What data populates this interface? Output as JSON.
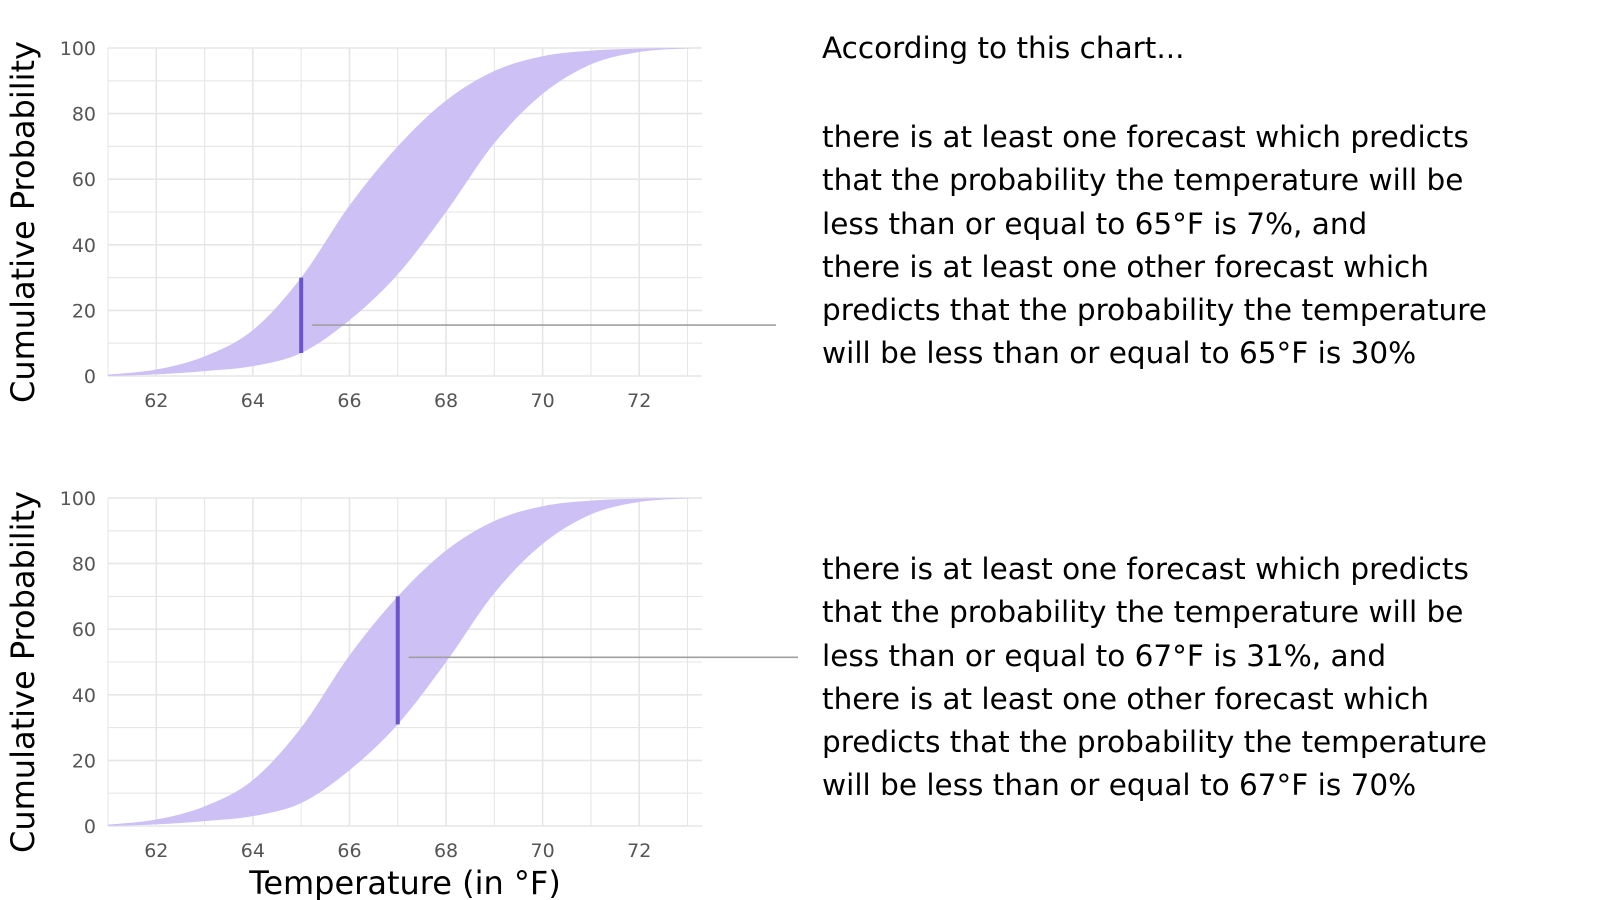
{
  "chart_data": [
    {
      "type": "area",
      "xlabel": "",
      "ylabel": "Cumulative Probability",
      "xlim": [
        61,
        73.3
      ],
      "ylim": [
        0,
        100
      ],
      "x_ticks": [
        "62",
        "64",
        "66",
        "68",
        "70",
        "72"
      ],
      "y_ticks": [
        "0",
        "20",
        "40",
        "60",
        "80",
        "100"
      ],
      "grid": true,
      "legend": "none",
      "colors": {
        "band": "#c9bdf3",
        "marker": "#6a55cc",
        "connector": "#a0a0a0",
        "grid": "#e6e6e6"
      },
      "band": {
        "description_x": [
          61,
          62,
          63,
          64,
          65,
          66,
          67,
          68,
          69,
          70,
          71,
          72,
          73,
          73.3
        ],
        "upper": [
          0.4,
          2,
          6,
          14,
          30,
          52,
          70,
          84,
          93,
          97.5,
          99.2,
          99.8,
          100,
          100
        ],
        "lower": [
          0,
          0.5,
          1.5,
          3,
          7,
          17,
          31,
          50,
          71,
          86,
          95,
          98.8,
          99.9,
          100
        ]
      },
      "highlight": {
        "x": 65,
        "low": 7,
        "high": 30
      }
    },
    {
      "type": "area",
      "xlabel": "Temperature (in °F)",
      "ylabel": "Cumulative Probability",
      "xlim": [
        61,
        73.3
      ],
      "ylim": [
        0,
        100
      ],
      "x_ticks": [
        "62",
        "64",
        "66",
        "68",
        "70",
        "72"
      ],
      "y_ticks": [
        "0",
        "20",
        "40",
        "60",
        "80",
        "100"
      ],
      "grid": true,
      "legend": "none",
      "colors": {
        "band": "#c9bdf3",
        "marker": "#6a55cc",
        "connector": "#a0a0a0",
        "grid": "#e6e6e6"
      },
      "band": {
        "description_x": [
          61,
          62,
          63,
          64,
          65,
          66,
          67,
          68,
          69,
          70,
          71,
          72,
          73,
          73.3
        ],
        "upper": [
          0.4,
          2,
          6,
          14,
          30,
          52,
          70,
          84,
          93,
          97.5,
          99.2,
          99.8,
          100,
          100
        ],
        "lower": [
          0,
          0.5,
          1.5,
          3,
          7,
          17,
          31,
          50,
          71,
          86,
          95,
          98.8,
          99.9,
          100
        ]
      },
      "highlight": {
        "x": 67,
        "low": 31,
        "high": 70
      }
    }
  ],
  "text": {
    "intro": "According to this chart...",
    "top_lines": [
      "there is at least one forecast which predicts",
      "that the probability the temperature will be",
      "less than or equal to 65°F is 7%, and",
      "there is at least one other forecast which",
      "predicts that the probability the temperature",
      "will be less than or equal to 65°F is 30%"
    ],
    "bottom_lines": [
      "there is at least one forecast which predicts",
      "that the probability the temperature will be",
      "less than or equal to 67°F is 31%, and",
      "there is at least one other forecast which",
      "predicts that the probability the temperature",
      "will be less than or equal to 67°F is 70%"
    ]
  }
}
